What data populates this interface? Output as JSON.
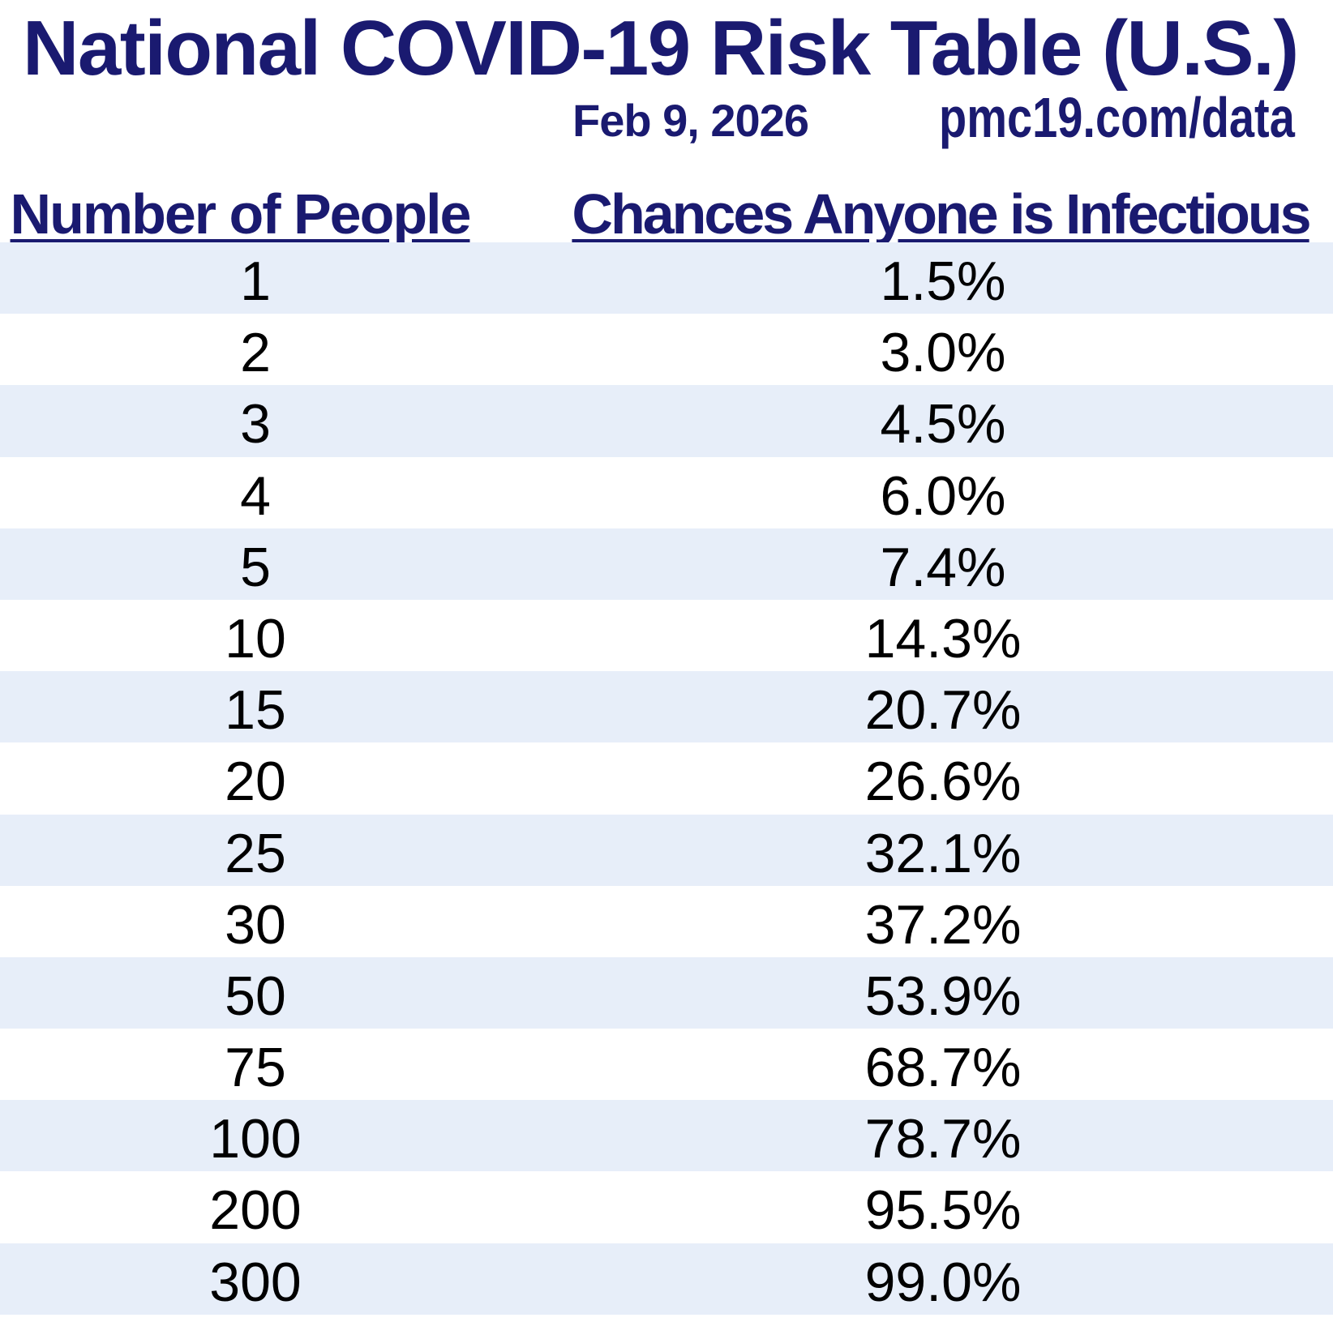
{
  "title": "National COVID-19 Risk Table (U.S.)",
  "date": "Feb 9, 2026",
  "source": "pmc19.com/data",
  "table": {
    "columns": [
      "Number of People",
      "Chances Anyone is Infectious"
    ],
    "rows": [
      {
        "people": "1",
        "chance": "1.5%"
      },
      {
        "people": "2",
        "chance": "3.0%"
      },
      {
        "people": "3",
        "chance": "4.5%"
      },
      {
        "people": "4",
        "chance": "6.0%"
      },
      {
        "people": "5",
        "chance": "7.4%"
      },
      {
        "people": "10",
        "chance": "14.3%"
      },
      {
        "people": "15",
        "chance": "20.7%"
      },
      {
        "people": "20",
        "chance": "26.6%"
      },
      {
        "people": "25",
        "chance": "32.1%"
      },
      {
        "people": "30",
        "chance": "37.2%"
      },
      {
        "people": "50",
        "chance": "53.9%"
      },
      {
        "people": "75",
        "chance": "68.7%"
      },
      {
        "people": "100",
        "chance": "78.7%"
      },
      {
        "people": "200",
        "chance": "95.5%"
      },
      {
        "people": "300",
        "chance": "99.0%"
      }
    ]
  },
  "colors": {
    "navy": "#1a1a70",
    "row_alt": "#e7eef9",
    "row_base": "#ffffff",
    "body_text": "#000000"
  },
  "chart_data": {
    "type": "table",
    "title": "National COVID-19 Risk Table (U.S.)",
    "date": "Feb 9, 2026",
    "source": "pmc19.com/data",
    "columns": [
      "Number of People",
      "Chances Anyone is Infectious"
    ],
    "x": [
      1,
      2,
      3,
      4,
      5,
      10,
      15,
      20,
      25,
      30,
      50,
      75,
      100,
      200,
      300
    ],
    "values_pct": [
      1.5,
      3.0,
      4.5,
      6.0,
      7.4,
      14.3,
      20.7,
      26.6,
      32.1,
      37.2,
      53.9,
      68.7,
      78.7,
      95.5,
      99.0
    ],
    "layout_hints": {
      "striped_rows": true,
      "stripe_color": "#e7eef9",
      "first_row_striped": true,
      "header_underlined": true
    }
  }
}
